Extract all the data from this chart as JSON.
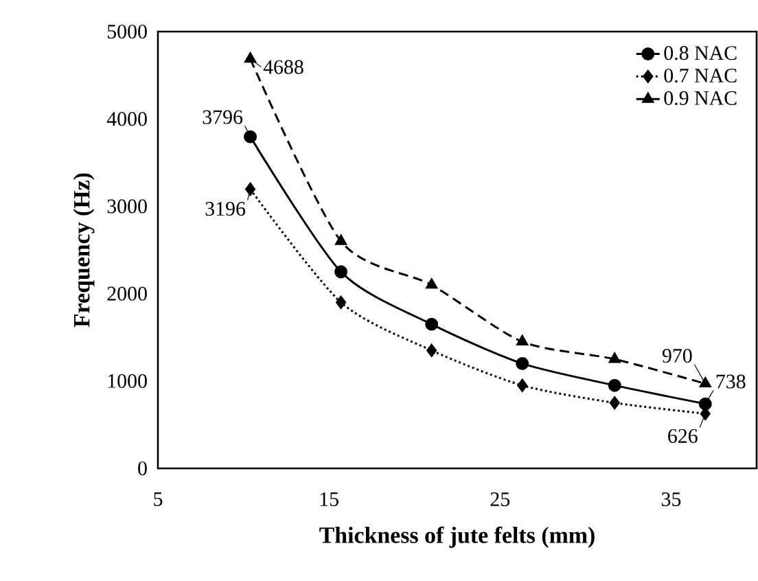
{
  "chart_data": {
    "type": "line",
    "xlabel": "Thickness of jute felts (mm)",
    "ylabel": "Frequency (Hz)",
    "x": [
      10.4,
      15.7,
      21.0,
      26.3,
      31.7,
      37.0
    ],
    "xlim": [
      5,
      40
    ],
    "ylim": [
      0,
      5000
    ],
    "xticks": [
      5,
      15,
      25,
      35
    ],
    "yticks": [
      0,
      1000,
      2000,
      3000,
      4000,
      5000
    ],
    "grid": false,
    "legend": "top right",
    "series": [
      {
        "name": "0.8 NAC",
        "color": "#000000",
        "marker": "circle",
        "line_style": "solid",
        "values": [
          3796,
          2250,
          1650,
          1200,
          950,
          738
        ],
        "value_labels": [
          "3796",
          null,
          null,
          null,
          null,
          "738"
        ]
      },
      {
        "name": "0.7 NAC",
        "color": "#000000",
        "marker": "diamond",
        "line_style": "dotted",
        "values": [
          3196,
          1900,
          1350,
          950,
          750,
          626
        ],
        "value_labels": [
          "3196",
          null,
          null,
          null,
          null,
          "626"
        ]
      },
      {
        "name": "0.9 NAC",
        "color": "#000000",
        "marker": "triangle",
        "line_style": "dashed",
        "values": [
          4688,
          2600,
          2100,
          1450,
          1250,
          970
        ],
        "value_labels": [
          "4688",
          null,
          null,
          null,
          null,
          "970"
        ]
      }
    ]
  }
}
